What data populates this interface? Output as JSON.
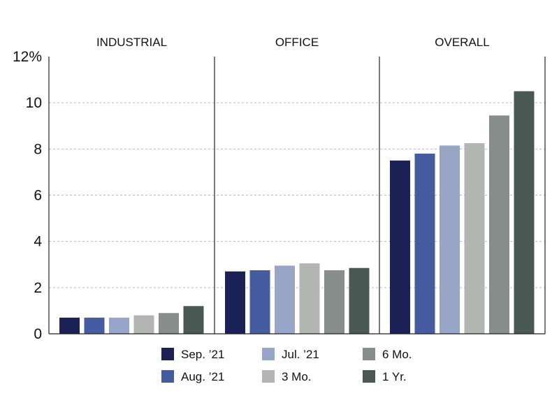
{
  "chart_data": {
    "type": "bar",
    "panels": [
      "INDUSTRIAL",
      "OFFICE",
      "OVERALL"
    ],
    "series": [
      {
        "name": "Sep. ’21",
        "color": "#1c2155",
        "values": [
          0.7,
          2.7,
          7.5
        ]
      },
      {
        "name": "Aug. ’21",
        "color": "#455ca0",
        "values": [
          0.7,
          2.75,
          7.8
        ]
      },
      {
        "name": "Jul. ’21",
        "color": "#98a5c7",
        "values": [
          0.7,
          2.95,
          8.15
        ]
      },
      {
        "name": "3 Mo.",
        "color": "#b3b5b3",
        "values": [
          0.8,
          3.05,
          8.25
        ]
      },
      {
        "name": "6 Mo.",
        "color": "#878d8a",
        "values": [
          0.9,
          2.75,
          9.45
        ]
      },
      {
        "name": "1 Yr.",
        "color": "#4a5854",
        "values": [
          1.2,
          2.85,
          10.5
        ]
      }
    ],
    "y_ticks": [
      "0",
      "2",
      "4",
      "6",
      "8",
      "10",
      "12%"
    ],
    "ylim": [
      0,
      12
    ],
    "grid": "dashed horizontal",
    "legend_position": "bottom",
    "xlabel": "",
    "ylabel": "",
    "title": ""
  }
}
